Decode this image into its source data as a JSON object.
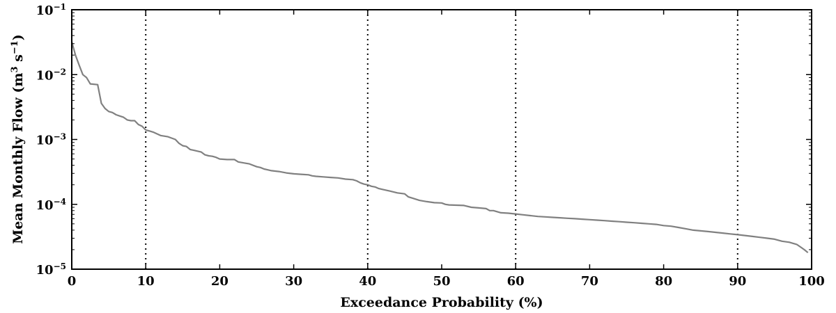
{
  "chart_data": {
    "type": "line",
    "title": "",
    "xlabel": "Exceedance Probability (%)",
    "ylabel": {
      "prefix": "Mean Monthly Flow (m",
      "sup1": "3",
      "middle": " s",
      "sup2": "−1",
      "suffix": ")"
    },
    "xlim": [
      0,
      100
    ],
    "ylim": [
      1e-05,
      0.1
    ],
    "yscale": "log",
    "x_ticks": [
      "0",
      "10",
      "20",
      "30",
      "40",
      "50",
      "60",
      "70",
      "80",
      "90",
      "100"
    ],
    "x_tick_values": [
      0,
      10,
      20,
      30,
      40,
      50,
      60,
      70,
      80,
      90,
      100
    ],
    "y_ticks": [
      {
        "value": 0.1,
        "base": "10",
        "exp": "−1"
      },
      {
        "value": 0.01,
        "base": "10",
        "exp": "−2"
      },
      {
        "value": 0.001,
        "base": "10",
        "exp": "−3"
      },
      {
        "value": 0.0001,
        "base": "10",
        "exp": "−4"
      },
      {
        "value": 1e-05,
        "base": "10",
        "exp": "−5"
      }
    ],
    "reference_lines_x": [
      10,
      40,
      60,
      90
    ],
    "line_color": "#808080",
    "reference_line_color": "#000000",
    "series": [
      {
        "x": [
          0.0,
          0.5,
          1.0,
          1.5,
          2.0,
          2.5,
          3.5,
          4.0,
          4.5,
          5.0,
          5.5,
          6.0,
          6.5,
          7.0,
          7.5,
          8.0,
          8.5,
          9.0,
          9.5,
          10.0,
          10.5,
          11.0,
          12.0,
          13.0,
          14.0,
          14.5,
          15.0,
          15.5,
          16.0,
          16.5,
          17.0,
          17.5,
          18.0,
          18.5,
          19.0,
          19.5,
          20.0,
          21.0,
          22.0,
          22.5,
          23.5,
          24.0,
          25.0,
          25.5,
          26.0,
          26.5,
          27.0,
          28.0,
          29.0,
          30.0,
          31.0,
          32.0,
          32.5,
          33.0,
          34.0,
          35.0,
          36.0,
          37.0,
          38.0,
          38.5,
          39.0,
          39.5,
          40.0,
          40.5,
          41.0,
          41.5,
          42.0,
          43.0,
          44.0,
          45.0,
          45.5,
          46.0,
          47.0,
          48.0,
          49.0,
          50.0,
          50.5,
          51.0,
          52.0,
          53.0,
          54.0,
          55.0,
          56.0,
          56.5,
          57.0,
          58.0,
          59.0,
          60.0,
          61.0,
          62.0,
          63.0,
          64.0,
          65.0,
          66.0,
          67.0,
          68.0,
          69.0,
          70.0,
          71.0,
          72.0,
          73.0,
          74.0,
          75.0,
          76.0,
          77.0,
          78.0,
          79.0,
          80.0,
          81.0,
          82.0,
          83.0,
          84.0,
          85.0,
          86.0,
          87.0,
          88.0,
          89.0,
          90.0,
          91.0,
          92.0,
          93.0,
          94.0,
          95.0,
          96.0,
          97.0,
          97.5,
          98.0,
          98.5,
          99.0,
          99.5
        ],
        "y": [
          0.032,
          0.02,
          0.014,
          0.01,
          0.009,
          0.0072,
          0.007,
          0.0036,
          0.003,
          0.0027,
          0.0026,
          0.0024,
          0.0023,
          0.0022,
          0.002,
          0.00195,
          0.00195,
          0.0017,
          0.0016,
          0.0014,
          0.00135,
          0.0013,
          0.00115,
          0.0011,
          0.001,
          0.00087,
          0.0008,
          0.00078,
          0.0007,
          0.00068,
          0.00066,
          0.00064,
          0.00058,
          0.00056,
          0.00055,
          0.00053,
          0.0005,
          0.00049,
          0.00049,
          0.00045,
          0.00043,
          0.00042,
          0.00038,
          0.00037,
          0.00035,
          0.00034,
          0.00033,
          0.00032,
          0.000305,
          0.000295,
          0.00029,
          0.000285,
          0.000275,
          0.00027,
          0.000265,
          0.00026,
          0.000255,
          0.000245,
          0.00024,
          0.00023,
          0.000215,
          0.000205,
          0.0002,
          0.00019,
          0.000185,
          0.000175,
          0.00017,
          0.00016,
          0.00015,
          0.000145,
          0.00013,
          0.000125,
          0.000115,
          0.00011,
          0.000106,
          0.000105,
          0.0001,
          9.8e-05,
          9.7e-05,
          9.6e-05,
          9e-05,
          8.8e-05,
          8.6e-05,
          8e-05,
          8e-05,
          7.4e-05,
          7.3e-05,
          7.1e-05,
          6.9e-05,
          6.7e-05,
          6.5e-05,
          6.4e-05,
          6.3e-05,
          6.2e-05,
          6.1e-05,
          6e-05,
          5.9e-05,
          5.8e-05,
          5.7e-05,
          5.6e-05,
          5.5e-05,
          5.4e-05,
          5.3e-05,
          5.2e-05,
          5.1e-05,
          5e-05,
          4.9e-05,
          4.7e-05,
          4.6e-05,
          4.4e-05,
          4.2e-05,
          4e-05,
          3.9e-05,
          3.8e-05,
          3.7e-05,
          3.6e-05,
          3.5e-05,
          3.4e-05,
          3.3e-05,
          3.2e-05,
          3.1e-05,
          3e-05,
          2.9e-05,
          2.7e-05,
          2.6e-05,
          2.5e-05,
          2.4e-05,
          2.2e-05,
          2e-05,
          1.8e-05
        ]
      }
    ]
  }
}
